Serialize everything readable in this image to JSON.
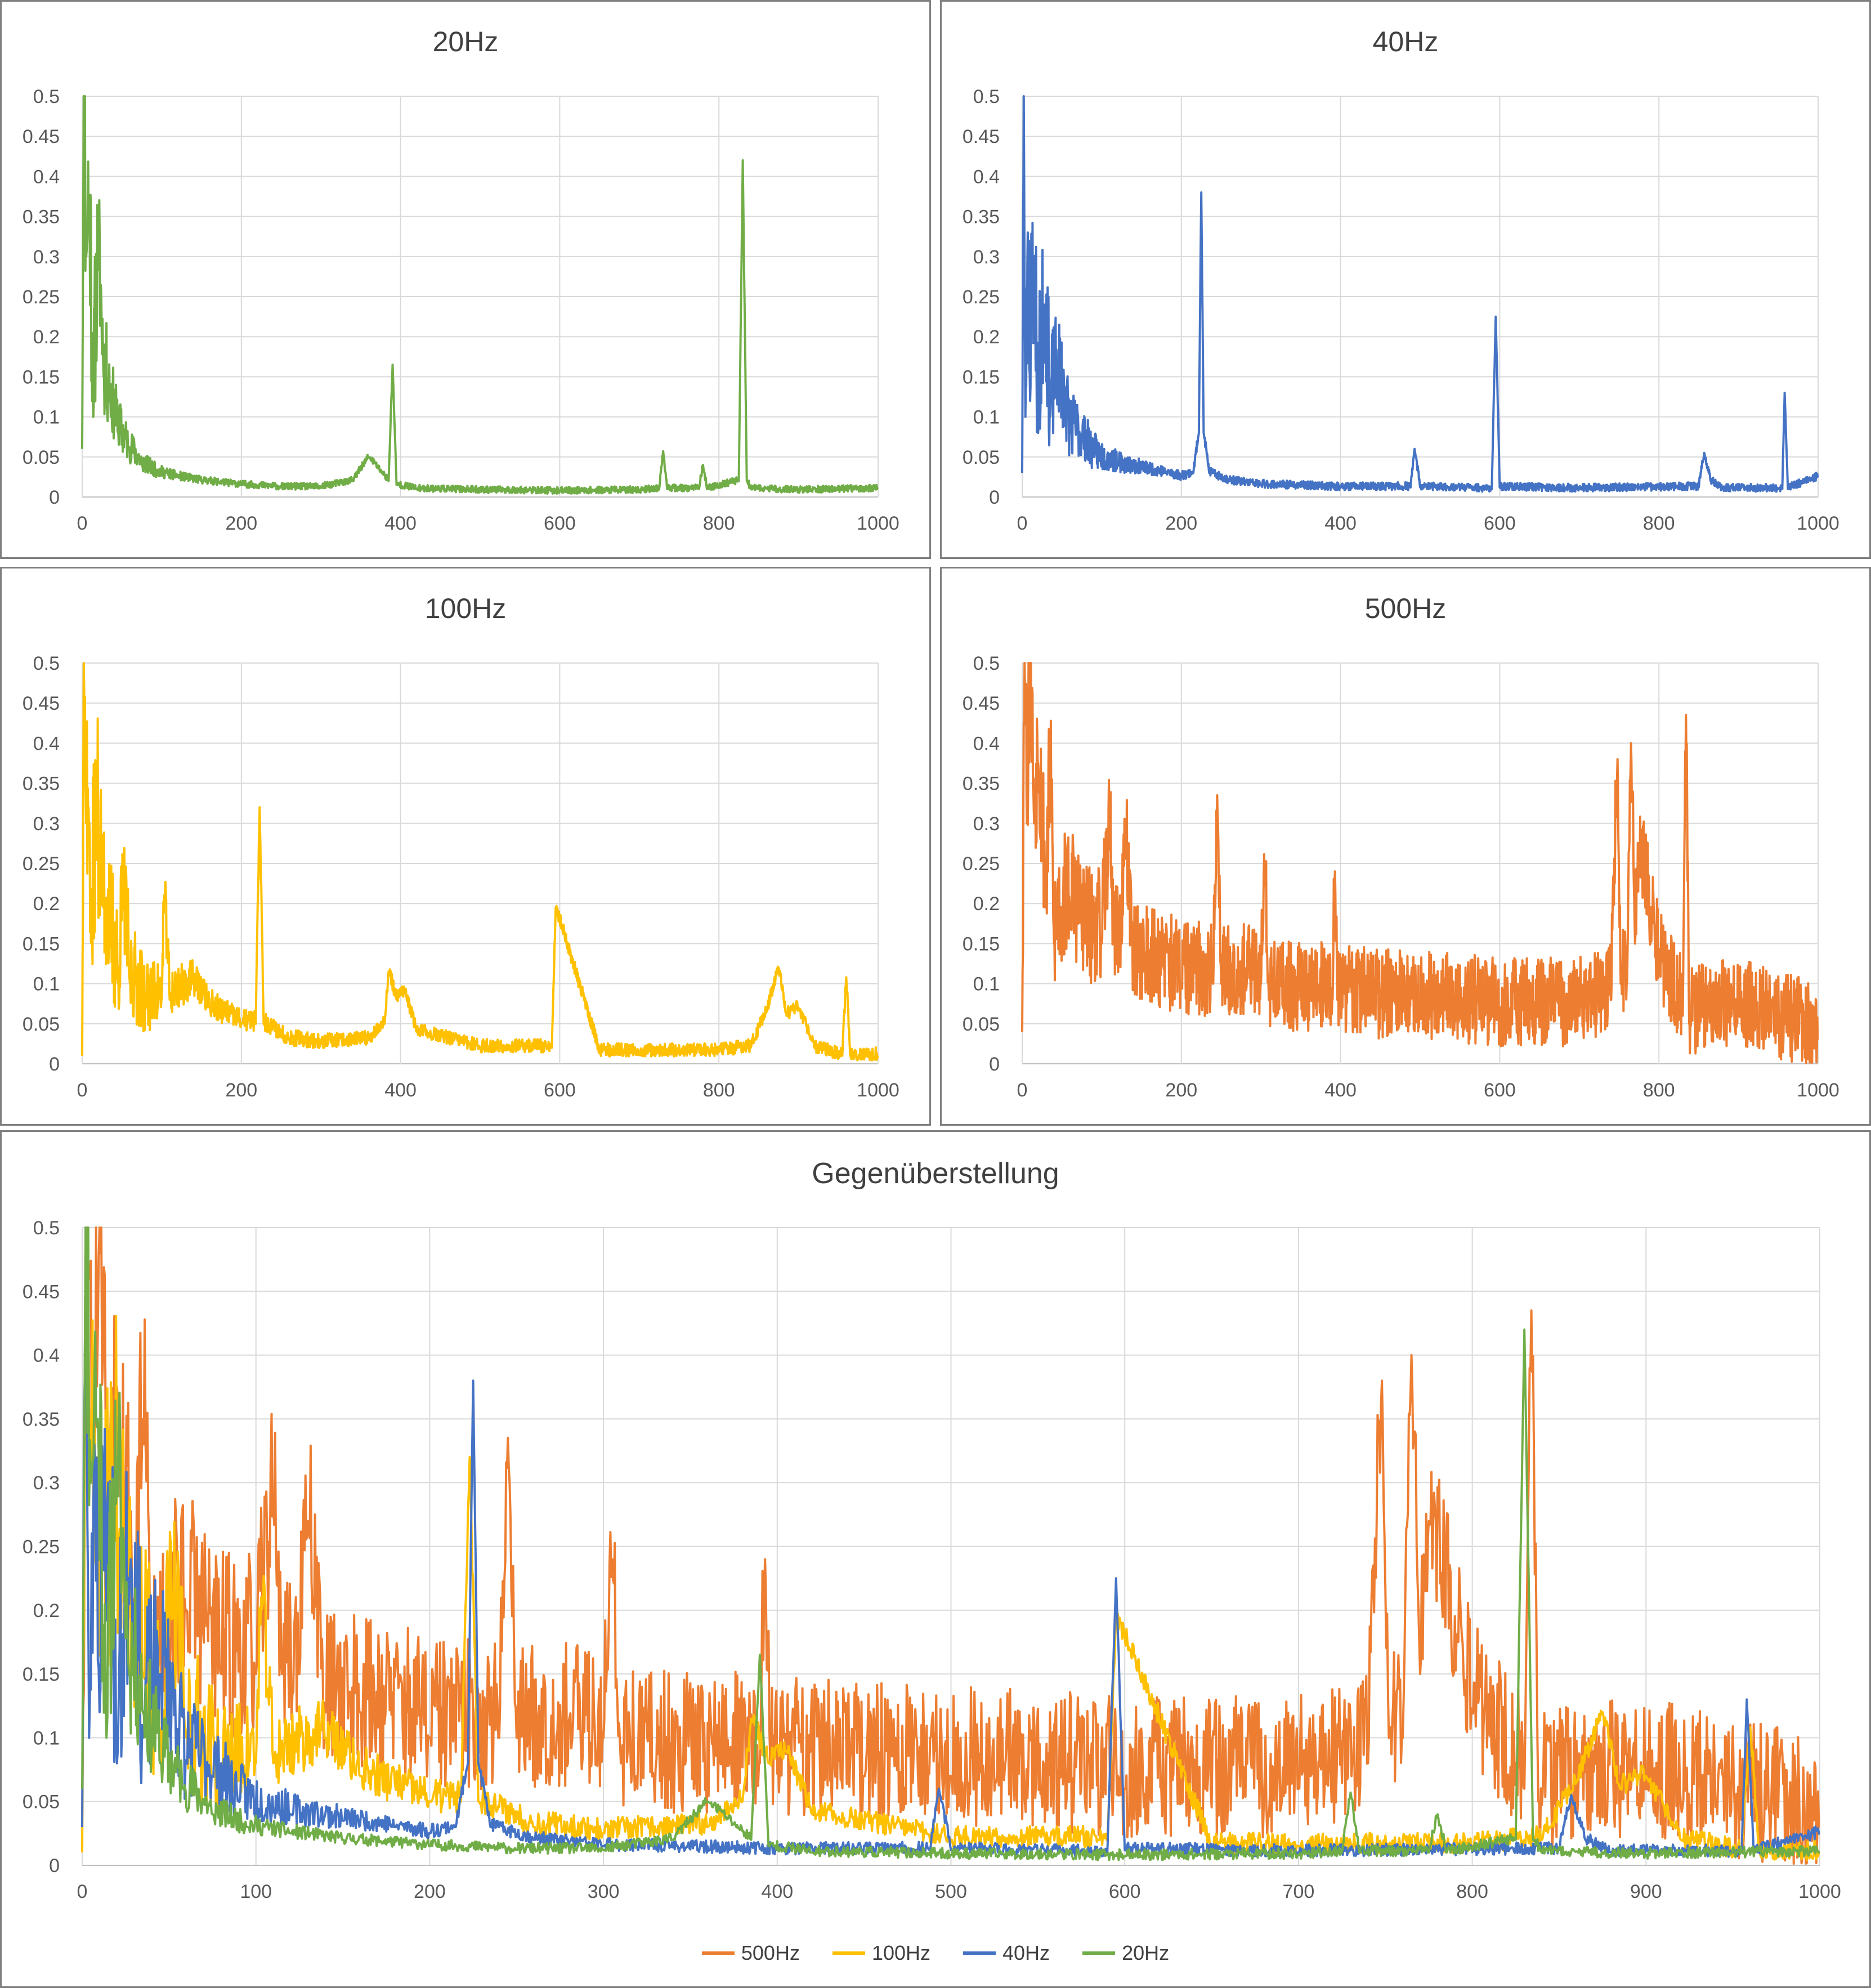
{
  "colors": {
    "500Hz": "#ED7D31",
    "100Hz": "#FFC000",
    "40Hz": "#4472C4",
    "20Hz": "#70AD47",
    "grid": "#d9d9d9",
    "text": "#595959"
  },
  "legend": [
    "500Hz",
    "100Hz",
    "40Hz",
    "20Hz"
  ],
  "chart_data": [
    {
      "type": "line",
      "title": "20Hz",
      "xlim": [
        0,
        1000
      ],
      "ylim": [
        0,
        0.5
      ],
      "xticks": [
        0,
        200,
        400,
        600,
        800,
        1000
      ],
      "yticks": [
        0,
        0.05,
        0.1,
        0.15,
        0.2,
        0.25,
        0.3,
        0.35,
        0.4,
        0.45,
        0.5
      ],
      "series": [
        {
          "color": "#70AD47",
          "noise": {
            "floor": 0.006,
            "decay_amp": 0.28,
            "decay_scale": 25,
            "seed": 11
          },
          "x": [
            0,
            2,
            5,
            9,
            14,
            20,
            27,
            35,
            45,
            58,
            75,
            95,
            120,
            150,
            200,
            250,
            300,
            340,
            360,
            385,
            390,
            395,
            420,
            500,
            600,
            700,
            725,
            730,
            735,
            775,
            780,
            785,
            825,
            830,
            835,
            840,
            900,
            1000
          ],
          "y": [
            0.06,
            0.5,
            0.3,
            0.35,
            0.1,
            0.3,
            0.15,
            0.12,
            0.08,
            0.06,
            0.04,
            0.03,
            0.025,
            0.02,
            0.015,
            0.012,
            0.012,
            0.02,
            0.05,
            0.02,
            0.165,
            0.015,
            0.01,
            0.008,
            0.007,
            0.008,
            0.01,
            0.057,
            0.01,
            0.01,
            0.04,
            0.01,
            0.02,
            0.42,
            0.02,
            0.01,
            0.008,
            0.01
          ]
        }
      ]
    },
    {
      "type": "line",
      "title": "40Hz",
      "xlim": [
        0,
        1000
      ],
      "ylim": [
        0,
        0.5
      ],
      "xticks": [
        0,
        200,
        400,
        600,
        800,
        1000
      ],
      "yticks": [
        0,
        0.05,
        0.1,
        0.15,
        0.2,
        0.25,
        0.3,
        0.35,
        0.4,
        0.45,
        0.5
      ],
      "series": [
        {
          "color": "#4472C4",
          "noise": {
            "floor": 0.007,
            "decay_amp": 0.26,
            "decay_scale": 40,
            "seed": 23
          },
          "x": [
            0,
            2,
            4,
            7,
            10,
            15,
            20,
            28,
            35,
            45,
            60,
            75,
            90,
            120,
            150,
            180,
            200,
            215,
            222,
            225,
            228,
            235,
            260,
            300,
            400,
            480,
            488,
            493,
            500,
            585,
            590,
            595,
            600,
            700,
            850,
            857,
            865,
            880,
            950,
            955,
            958,
            962,
            1000
          ],
          "y": [
            0.03,
            0.5,
            0.1,
            0.33,
            0.12,
            0.3,
            0.08,
            0.24,
            0.1,
            0.15,
            0.08,
            0.07,
            0.05,
            0.04,
            0.035,
            0.03,
            0.025,
            0.03,
            0.08,
            0.38,
            0.08,
            0.03,
            0.02,
            0.015,
            0.012,
            0.012,
            0.012,
            0.06,
            0.012,
            0.01,
            0.01,
            0.225,
            0.012,
            0.01,
            0.012,
            0.055,
            0.02,
            0.01,
            0.01,
            0.01,
            0.13,
            0.01,
            0.025
          ]
        }
      ]
    },
    {
      "type": "line",
      "title": "100Hz",
      "xlim": [
        0,
        1000
      ],
      "ylim": [
        0,
        0.5
      ],
      "xticks": [
        0,
        200,
        400,
        600,
        800,
        1000
      ],
      "yticks": [
        0,
        0.05,
        0.1,
        0.15,
        0.2,
        0.25,
        0.3,
        0.35,
        0.4,
        0.45,
        0.5
      ],
      "series": [
        {
          "color": "#FFC000",
          "noise": {
            "floor": 0.012,
            "decay_amp": 0.22,
            "decay_scale": 60,
            "seed": 37
          },
          "x": [
            0,
            2,
            5,
            8,
            12,
            18,
            25,
            35,
            45,
            52,
            60,
            80,
            100,
            103,
            110,
            140,
            160,
            200,
            218,
            223,
            228,
            260,
            300,
            360,
            380,
            385,
            395,
            405,
            420,
            500,
            585,
            590,
            595,
            650,
            700,
            800,
            840,
            860,
            875,
            885,
            900,
            920,
            955,
            960,
            965,
            1000
          ],
          "y": [
            0.01,
            0.5,
            0.3,
            0.32,
            0.15,
            0.3,
            0.2,
            0.15,
            0.1,
            0.2,
            0.1,
            0.07,
            0.08,
            0.21,
            0.08,
            0.1,
            0.07,
            0.05,
            0.05,
            0.32,
            0.05,
            0.03,
            0.025,
            0.03,
            0.05,
            0.115,
            0.08,
            0.09,
            0.04,
            0.02,
            0.02,
            0.02,
            0.195,
            0.015,
            0.015,
            0.015,
            0.02,
            0.065,
            0.12,
            0.06,
            0.07,
            0.02,
            0.01,
            0.108,
            0.01,
            0.01
          ]
        }
      ]
    },
    {
      "type": "line",
      "title": "500Hz",
      "xlim": [
        0,
        1000
      ],
      "ylim": [
        0,
        0.5
      ],
      "xticks": [
        0,
        200,
        400,
        600,
        800,
        1000
      ],
      "yticks": [
        0,
        0.05,
        0.1,
        0.15,
        0.2,
        0.25,
        0.3,
        0.35,
        0.4,
        0.45,
        0.5
      ],
      "series": [
        {
          "color": "#ED7D31",
          "noise": {
            "floor": 0.08,
            "decay_amp": 0.08,
            "decay_scale": 80,
            "seed": 53
          },
          "x": [
            0,
            3,
            6,
            10,
            15,
            20,
            30,
            35,
            40,
            60,
            80,
            100,
            110,
            115,
            125,
            130,
            140,
            160,
            200,
            240,
            245,
            250,
            300,
            305,
            310,
            390,
            393,
            396,
            450,
            500,
            600,
            700,
            740,
            748,
            752,
            760,
            765,
            770,
            775,
            800,
            830,
            834,
            838,
            900,
            1000
          ],
          "y": [
            0.04,
            0.5,
            0.3,
            0.5,
            0.3,
            0.375,
            0.2,
            0.35,
            0.15,
            0.2,
            0.15,
            0.15,
            0.28,
            0.15,
            0.15,
            0.27,
            0.12,
            0.12,
            0.1,
            0.1,
            0.335,
            0.1,
            0.1,
            0.24,
            0.08,
            0.08,
            0.24,
            0.08,
            0.07,
            0.07,
            0.06,
            0.06,
            0.08,
            0.38,
            0.1,
            0.1,
            0.4,
            0.15,
            0.27,
            0.12,
            0.06,
            0.435,
            0.05,
            0.06,
            0.03
          ]
        }
      ]
    },
    {
      "type": "line",
      "title": "Gegenüberstellung",
      "xlim": [
        0,
        1000
      ],
      "ylim": [
        0,
        0.5
      ],
      "xticks": [
        0,
        100,
        200,
        300,
        400,
        500,
        600,
        700,
        800,
        900,
        1000
      ],
      "yticks": [
        0,
        0.05,
        0.1,
        0.15,
        0.2,
        0.25,
        0.3,
        0.35,
        0.4,
        0.45,
        0.5
      ],
      "legend": "bottom",
      "series": [
        {
          "name": "500Hz",
          "color": "#ED7D31",
          "ref": 3
        },
        {
          "name": "100Hz",
          "color": "#FFC000",
          "ref": 2
        },
        {
          "name": "40Hz",
          "color": "#4472C4",
          "ref": 1
        },
        {
          "name": "20Hz",
          "color": "#70AD47",
          "ref": 0
        }
      ]
    }
  ]
}
